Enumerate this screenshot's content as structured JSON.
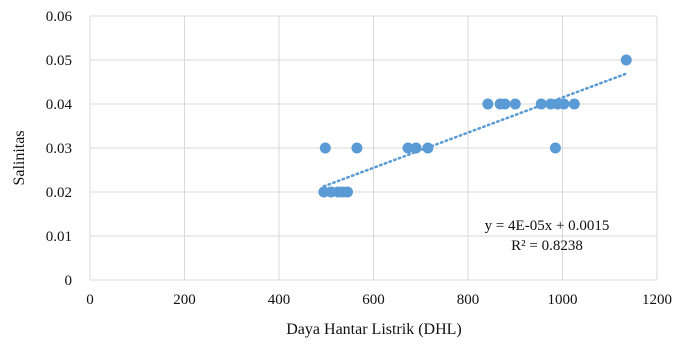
{
  "chart_data": {
    "type": "scatter",
    "title": "",
    "xlabel": "Daya Hantar Listrik  (DHL)",
    "ylabel": "Salinitas",
    "xlim": [
      0,
      1200
    ],
    "ylim": [
      0,
      0.06
    ],
    "xticks": [
      0,
      200,
      400,
      600,
      800,
      1000,
      1200
    ],
    "yticks": [
      0,
      0.01,
      0.02,
      0.03,
      0.04,
      0.05,
      0.06
    ],
    "xtick_labels": [
      "0",
      "200",
      "400",
      "600",
      "800",
      "1000",
      "1200"
    ],
    "ytick_labels": [
      "0",
      "0.01",
      "0.02",
      "0.03",
      "0.04",
      "0.05",
      "0.06"
    ],
    "grid": true,
    "legend": false,
    "marker_color": "#5b9bd5",
    "points": [
      {
        "x": 495,
        "y": 0.02
      },
      {
        "x": 510,
        "y": 0.02
      },
      {
        "x": 525,
        "y": 0.02
      },
      {
        "x": 535,
        "y": 0.02
      },
      {
        "x": 545,
        "y": 0.02
      },
      {
        "x": 498,
        "y": 0.03
      },
      {
        "x": 565,
        "y": 0.03
      },
      {
        "x": 673,
        "y": 0.03
      },
      {
        "x": 690,
        "y": 0.03
      },
      {
        "x": 715,
        "y": 0.03
      },
      {
        "x": 842,
        "y": 0.04
      },
      {
        "x": 868,
        "y": 0.04
      },
      {
        "x": 878,
        "y": 0.04
      },
      {
        "x": 900,
        "y": 0.04
      },
      {
        "x": 955,
        "y": 0.04
      },
      {
        "x": 975,
        "y": 0.04
      },
      {
        "x": 990,
        "y": 0.04
      },
      {
        "x": 1003,
        "y": 0.04
      },
      {
        "x": 1025,
        "y": 0.04
      },
      {
        "x": 985,
        "y": 0.03
      },
      {
        "x": 1135,
        "y": 0.05
      }
    ],
    "trendline": {
      "type": "linear",
      "slope": 4e-05,
      "intercept": 0.0015,
      "x_range": [
        495,
        1135
      ],
      "equation": "y = 4E-05x + 0.0015",
      "r_squared": "R² = 0.8238"
    }
  }
}
